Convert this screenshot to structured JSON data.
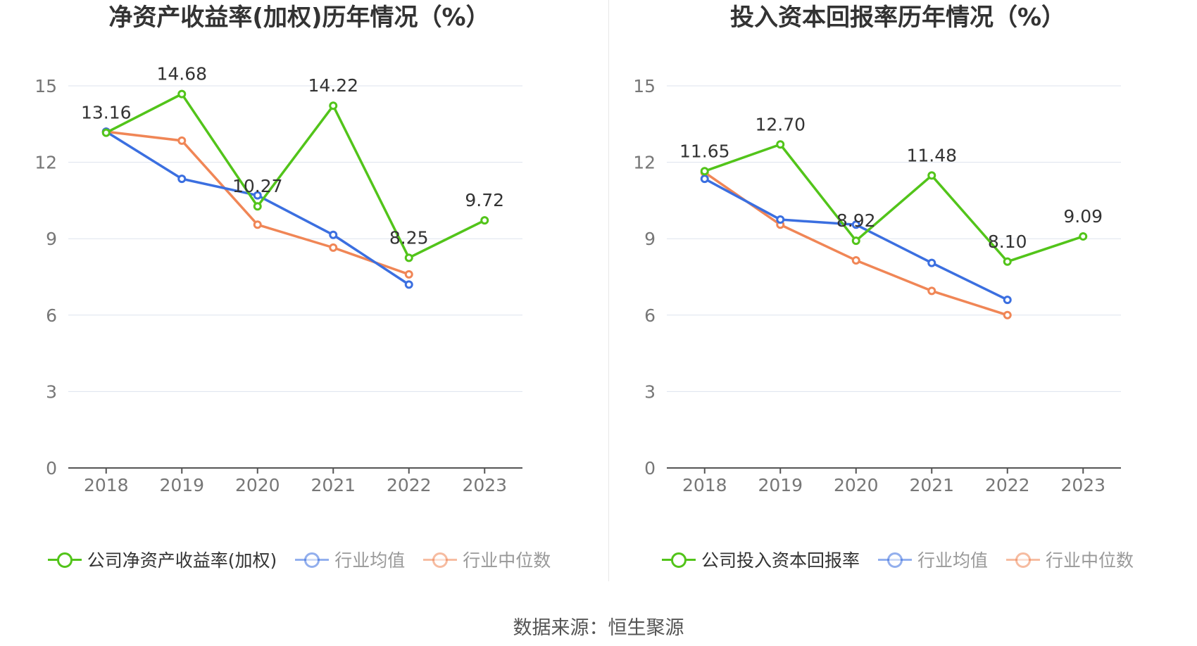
{
  "chart_data": [
    {
      "type": "line",
      "title": "净资产收益率(加权)历年情况（%）",
      "categories": [
        "2018",
        "2019",
        "2020",
        "2021",
        "2022",
        "2023"
      ],
      "ylim": [
        0,
        15
      ],
      "yticks": [
        "0",
        "3",
        "6",
        "9",
        "12",
        "15"
      ],
      "grid": true,
      "legend_position": "bottom",
      "series": [
        {
          "name": "公司净资产收益率(加权)",
          "color": "#52c41a",
          "values": [
            13.16,
            14.68,
            10.27,
            14.22,
            8.25,
            9.72
          ],
          "labels": [
            "13.16",
            "14.68",
            "10.27",
            "14.22",
            "8.25",
            "9.72"
          ]
        },
        {
          "name": "行业均值",
          "color": "#3b6fe0",
          "values": [
            13.2,
            11.35,
            10.7,
            9.15,
            7.2,
            null
          ]
        },
        {
          "name": "行业中位数",
          "color": "#f08656",
          "values": [
            13.2,
            12.85,
            9.55,
            8.65,
            7.6,
            null
          ]
        }
      ]
    },
    {
      "type": "line",
      "title": "投入资本回报率历年情况（%）",
      "categories": [
        "2018",
        "2019",
        "2020",
        "2021",
        "2022",
        "2023"
      ],
      "ylim": [
        0,
        15
      ],
      "yticks": [
        "0",
        "3",
        "6",
        "9",
        "12",
        "15"
      ],
      "grid": true,
      "legend_position": "bottom",
      "series": [
        {
          "name": "公司投入资本回报率",
          "color": "#52c41a",
          "values": [
            11.65,
            12.7,
            8.92,
            11.48,
            8.1,
            9.09
          ],
          "labels": [
            "11.65",
            "12.70",
            "8.92",
            "11.48",
            "8.10",
            "9.09"
          ]
        },
        {
          "name": "行业均值",
          "color": "#3b6fe0",
          "values": [
            11.35,
            9.75,
            9.55,
            8.05,
            6.6,
            null
          ]
        },
        {
          "name": "行业中位数",
          "color": "#f08656",
          "values": [
            11.6,
            9.55,
            8.15,
            6.95,
            6.0,
            null
          ]
        }
      ]
    }
  ],
  "footer": {
    "source": "数据来源：恒生聚源"
  }
}
